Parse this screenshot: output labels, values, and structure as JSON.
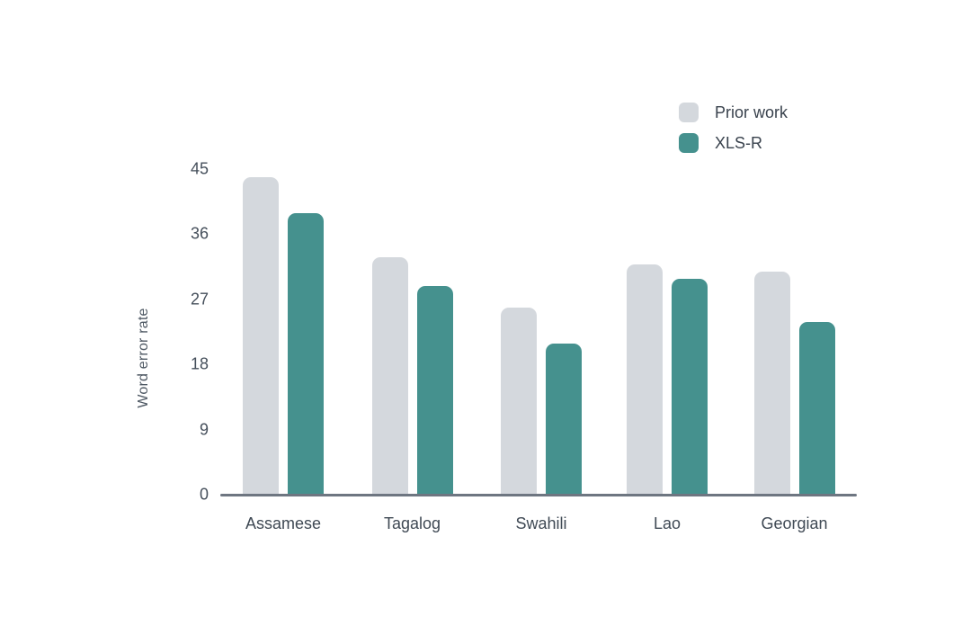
{
  "chart_data": {
    "type": "bar",
    "title": "",
    "categories": [
      "Assamese",
      "Tagalog",
      "Swahili",
      "Lao",
      "Georgian"
    ],
    "series": [
      {
        "name": "Prior work",
        "color": "#d4d8dd",
        "values": [
          44,
          33,
          26,
          32,
          31
        ]
      },
      {
        "name": "XLS-R",
        "color": "#45918e",
        "values": [
          39,
          29,
          21,
          30,
          24
        ]
      }
    ],
    "xlabel": "",
    "ylabel": "Word error rate",
    "yticks": [
      0,
      9,
      18,
      27,
      36,
      45
    ],
    "ylim": [
      0,
      45
    ],
    "grid": false,
    "legend_position": "top-right",
    "axis_color": "#6e7681",
    "background_color": "#ffffff"
  }
}
